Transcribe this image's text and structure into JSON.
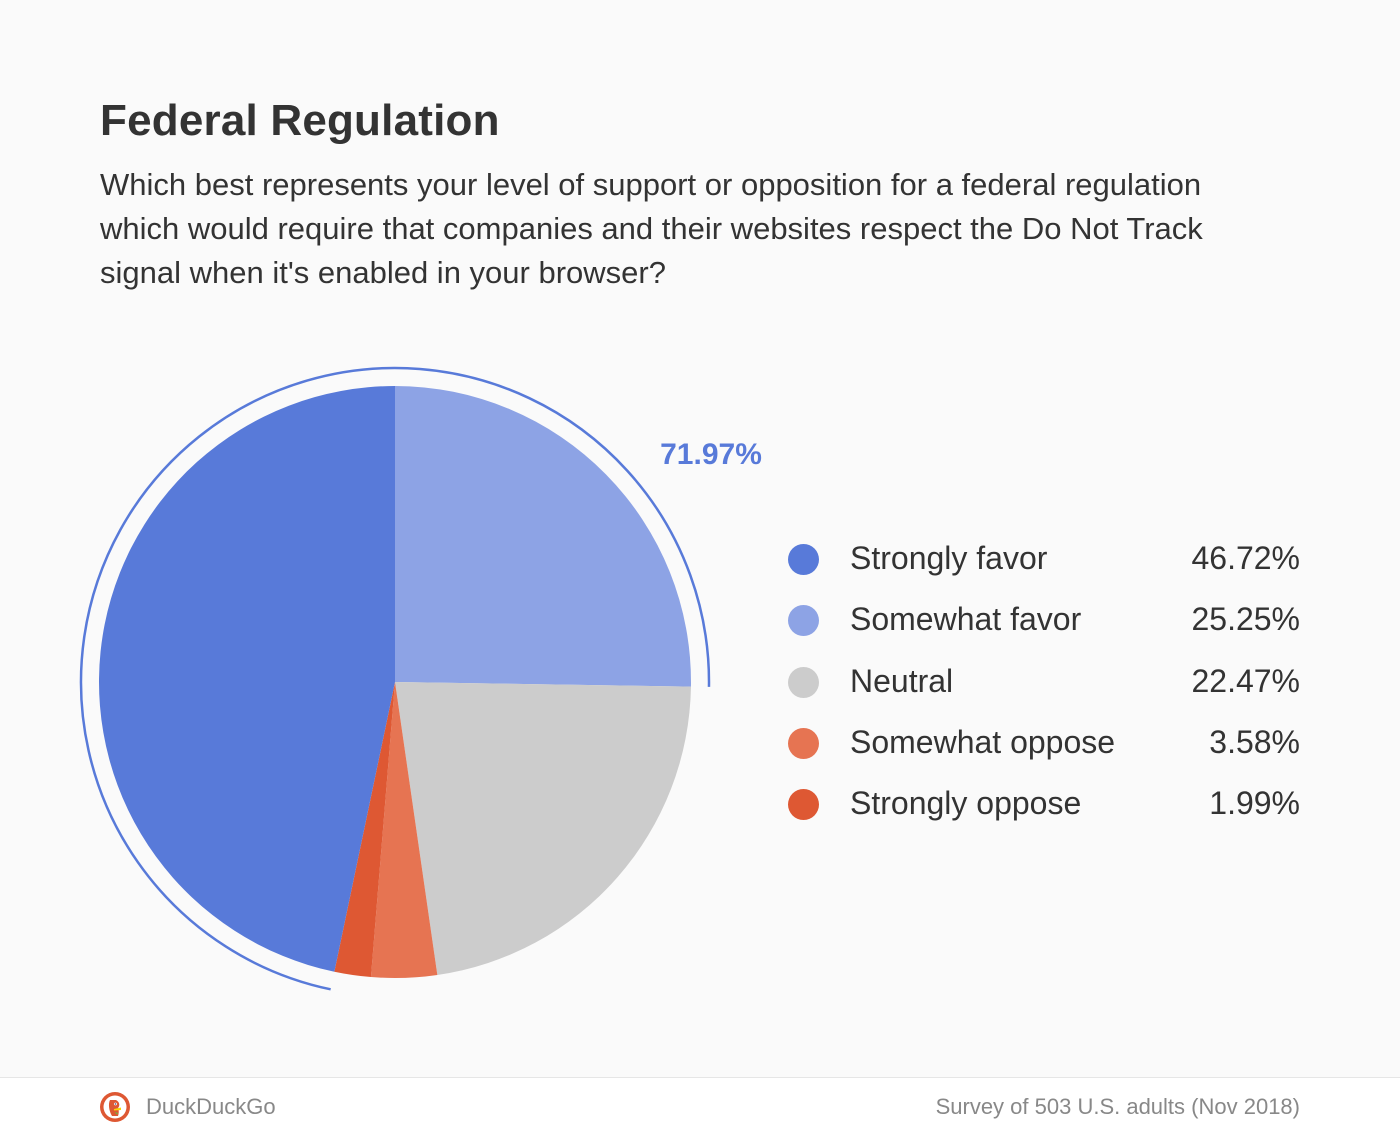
{
  "chart_data": {
    "type": "pie",
    "title": "Federal Regulation",
    "subtitle": "Which best represents your level of support or opposition for a federal regulation which would require that companies and their websites respect the Do Not Track signal when it's enabled in your browser?",
    "categories": [
      "Strongly favor",
      "Somewhat favor",
      "Neutral",
      "Somewhat oppose",
      "Strongly oppose"
    ],
    "values": [
      46.72,
      25.25,
      22.47,
      3.58,
      1.99
    ],
    "value_labels": [
      "46.72%",
      "25.25%",
      "22.47%",
      "3.58%",
      "1.99%"
    ],
    "colors": [
      "#587ad9",
      "#8da3e5",
      "#cccccc",
      "#e67452",
      "#de5833"
    ],
    "start_direction": "12 o'clock, clockwise from Somewhat favor",
    "slice_order": [
      1,
      2,
      3,
      4,
      0
    ],
    "annotation": {
      "label": "71.97%",
      "covers": [
        "Strongly favor",
        "Somewhat favor"
      ],
      "color": "#587ad9"
    },
    "legend_position": "right"
  },
  "footer": {
    "brand": "DuckDuckGo",
    "logo_icon": "duckduckgo-logo-icon",
    "source": "Survey of 503 U.S. adults (Nov 2018)"
  }
}
